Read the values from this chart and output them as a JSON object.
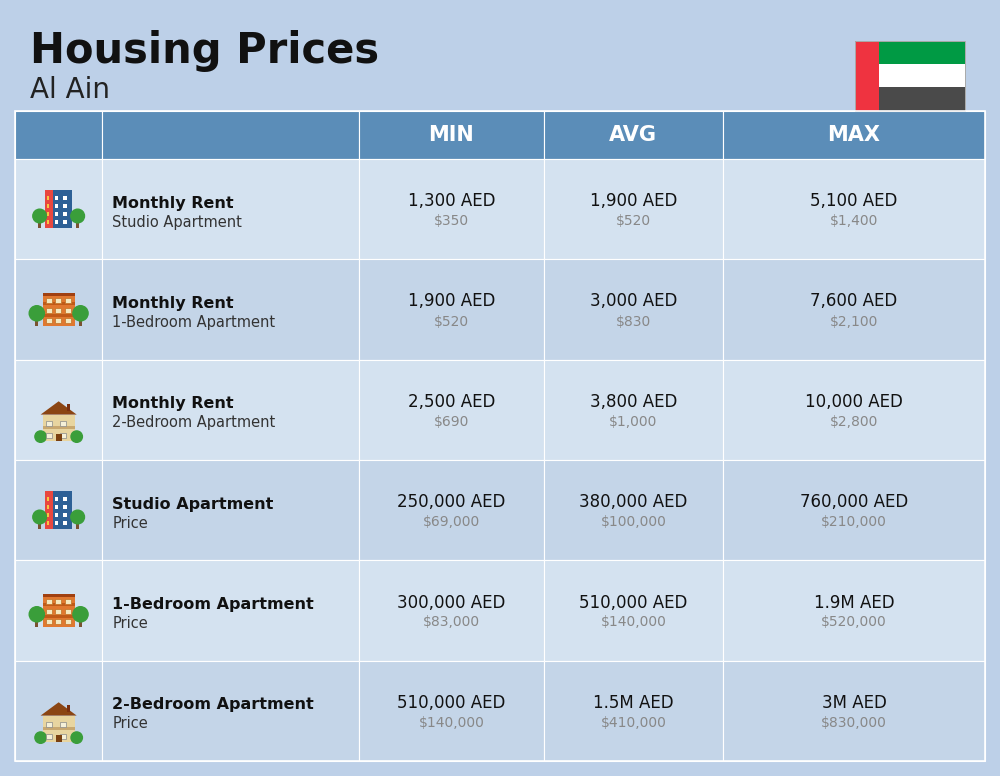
{
  "title": "Housing Prices",
  "subtitle": "Al Ain",
  "bg_color": "#bdd0e8",
  "header_bg": "#5b8db8",
  "header_text_color": "#ffffff",
  "row_colors": [
    "#d4e2f0",
    "#c4d5e8"
  ],
  "col_headers": [
    "MIN",
    "AVG",
    "MAX"
  ],
  "rows": [
    {
      "bold_label": "Monthly Rent",
      "sub_label": "Studio Apartment",
      "icon_type": "studio_blue",
      "min_aed": "1,300 AED",
      "min_usd": "$350",
      "avg_aed": "1,900 AED",
      "avg_usd": "$520",
      "max_aed": "5,100 AED",
      "max_usd": "$1,400"
    },
    {
      "bold_label": "Monthly Rent",
      "sub_label": "1-Bedroom Apartment",
      "icon_type": "apt_orange",
      "min_aed": "1,900 AED",
      "min_usd": "$520",
      "avg_aed": "3,000 AED",
      "avg_usd": "$830",
      "max_aed": "7,600 AED",
      "max_usd": "$2,100"
    },
    {
      "bold_label": "Monthly Rent",
      "sub_label": "2-Bedroom Apartment",
      "icon_type": "apt_house",
      "min_aed": "2,500 AED",
      "min_usd": "$690",
      "avg_aed": "3,800 AED",
      "avg_usd": "$1,000",
      "max_aed": "10,000 AED",
      "max_usd": "$2,800"
    },
    {
      "bold_label": "Studio Apartment",
      "sub_label": "Price",
      "icon_type": "studio_blue",
      "min_aed": "250,000 AED",
      "min_usd": "$69,000",
      "avg_aed": "380,000 AED",
      "avg_usd": "$100,000",
      "max_aed": "760,000 AED",
      "max_usd": "$210,000"
    },
    {
      "bold_label": "1-Bedroom Apartment",
      "sub_label": "Price",
      "icon_type": "apt_orange",
      "min_aed": "300,000 AED",
      "min_usd": "$83,000",
      "avg_aed": "510,000 AED",
      "avg_usd": "$140,000",
      "max_aed": "1.9M AED",
      "max_usd": "$520,000"
    },
    {
      "bold_label": "2-Bedroom Apartment",
      "sub_label": "Price",
      "icon_type": "apt_house",
      "min_aed": "510,000 AED",
      "min_usd": "$140,000",
      "avg_aed": "1.5M AED",
      "avg_usd": "$410,000",
      "max_aed": "3M AED",
      "max_usd": "$830,000"
    }
  ]
}
